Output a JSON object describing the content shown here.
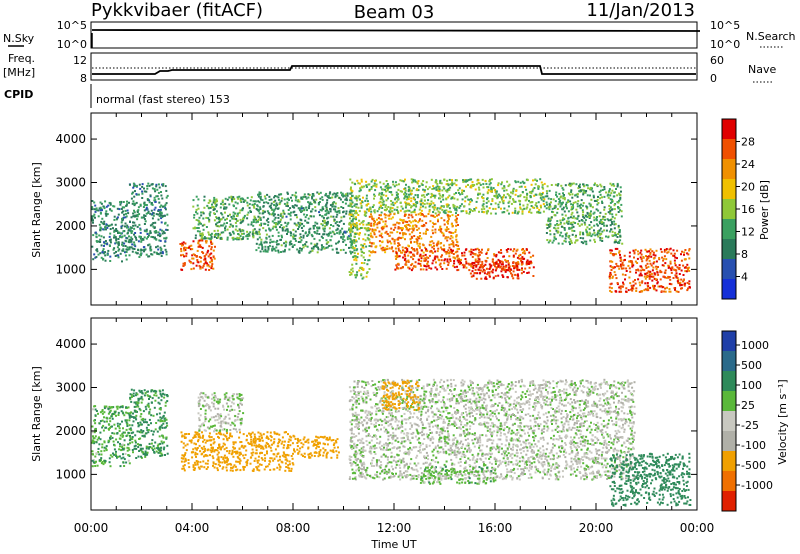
{
  "header": {
    "station": "Pykkvibaer (fitACF)",
    "beam": "Beam 03",
    "date": "11/Jan/2013"
  },
  "top_panels": {
    "nsky_label": "N.Sky",
    "nsky_ticks": [
      "10^5",
      "10^0"
    ],
    "nsearch_label": "N.Search",
    "nsearch_ticks": [
      "10^5",
      "10^0"
    ],
    "freq_label": "Freq.",
    "freq_unit": "[MHz]",
    "freq_ticks": [
      "12",
      "8"
    ],
    "nave_label": "Nave",
    "nave_ticks": [
      "60",
      "0"
    ],
    "cpid_label": "CPID",
    "cpid_value": "normal (fast stereo) 153"
  },
  "colors": {
    "power_scale": [
      "#1530d8",
      "#2850b0",
      "#2a7a5a",
      "#3aa060",
      "#8fc838",
      "#f0c000",
      "#f09000",
      "#f05000",
      "#e00000"
    ],
    "velocity_scale": [
      "#1f3fa8",
      "#2a6a8a",
      "#2e8a5a",
      "#5ab83a",
      "#c8c8c0",
      "#b0b0a8",
      "#f0a000",
      "#f07000",
      "#e02000"
    ]
  },
  "chart_data": [
    {
      "type": "heatmap",
      "name": "power",
      "ylabel": "Slant Range [km]",
      "xlabel": "Time UT",
      "xlim": [
        "00:00",
        "24:00"
      ],
      "ylim": [
        180,
        4600
      ],
      "yticks": [
        "1000",
        "2000",
        "3000",
        "4000"
      ],
      "xticks": [
        "00:00",
        "04:00",
        "08:00",
        "12:00",
        "16:00",
        "20:00",
        "00:00"
      ],
      "colorbar": {
        "label": "Power [dB]",
        "range": [
          0,
          32
        ],
        "ticks": [
          "4",
          "8",
          "12",
          "16",
          "20",
          "24",
          "28"
        ]
      },
      "regions": [
        {
          "t0": 0.0,
          "t1": 1.5,
          "r0": 1200,
          "r1": 2600,
          "value": 10
        },
        {
          "t0": 1.5,
          "t1": 3.0,
          "r0": 1300,
          "r1": 3000,
          "value": 10
        },
        {
          "t0": 3.5,
          "t1": 4.9,
          "r0": 1000,
          "r1": 1700,
          "value": 27
        },
        {
          "t0": 4.0,
          "t1": 6.5,
          "r0": 1700,
          "r1": 2700,
          "value": 13
        },
        {
          "t0": 6.5,
          "t1": 10.5,
          "r0": 1400,
          "r1": 2800,
          "value": 11
        },
        {
          "t0": 10.2,
          "t1": 11.0,
          "r0": 800,
          "r1": 3100,
          "value": 16
        },
        {
          "t0": 11.0,
          "t1": 18.0,
          "r0": 2300,
          "r1": 3100,
          "value": 15
        },
        {
          "t0": 11.0,
          "t1": 14.5,
          "r0": 1400,
          "r1": 2300,
          "value": 24
        },
        {
          "t0": 12.0,
          "t1": 17.5,
          "r0": 1000,
          "r1": 1500,
          "value": 27
        },
        {
          "t0": 15.0,
          "t1": 17.5,
          "r0": 800,
          "r1": 1200,
          "value": 29
        },
        {
          "t0": 18.0,
          "t1": 21.0,
          "r0": 1600,
          "r1": 3000,
          "value": 13
        },
        {
          "t0": 20.5,
          "t1": 23.7,
          "r0": 500,
          "r1": 1500,
          "value": 27
        }
      ]
    },
    {
      "type": "heatmap",
      "name": "velocity",
      "ylabel": "Slant Range [km]",
      "xlabel": "Time UT",
      "xlim": [
        "00:00",
        "24:00"
      ],
      "ylim": [
        180,
        4600
      ],
      "yticks": [
        "1000",
        "2000",
        "3000",
        "4000"
      ],
      "xticks": [
        "00:00",
        "04:00",
        "08:00",
        "12:00",
        "16:00",
        "20:00",
        "00:00"
      ],
      "colorbar": {
        "label": "Velocity [m s⁻¹]",
        "range": [
          -1200,
          1200
        ],
        "ticks": [
          "1000",
          "500",
          "100",
          "25",
          "-25",
          "-100",
          "-500",
          "-1000"
        ]
      },
      "regions": [
        {
          "t0": 0.0,
          "t1": 1.5,
          "r0": 1200,
          "r1": 2600,
          "value": 80
        },
        {
          "t0": 1.5,
          "t1": 3.0,
          "r0": 1400,
          "r1": 3000,
          "value": 120
        },
        {
          "t0": 3.5,
          "t1": 8.0,
          "r0": 1100,
          "r1": 2000,
          "value": -300
        },
        {
          "t0": 4.2,
          "t1": 6.0,
          "r0": 2000,
          "r1": 2900,
          "value": 0
        },
        {
          "t0": 8.0,
          "t1": 9.8,
          "r0": 1400,
          "r1": 1900,
          "value": -250
        },
        {
          "t0": 10.2,
          "t1": 21.5,
          "r0": 900,
          "r1": 3200,
          "value": 0
        },
        {
          "t0": 11.5,
          "t1": 13.0,
          "r0": 2500,
          "r1": 3200,
          "value": -300
        },
        {
          "t0": 13.0,
          "t1": 16.0,
          "r0": 800,
          "r1": 1200,
          "value": 60
        },
        {
          "t0": 20.5,
          "t1": 23.7,
          "r0": 300,
          "r1": 1500,
          "value": 400
        }
      ]
    }
  ]
}
